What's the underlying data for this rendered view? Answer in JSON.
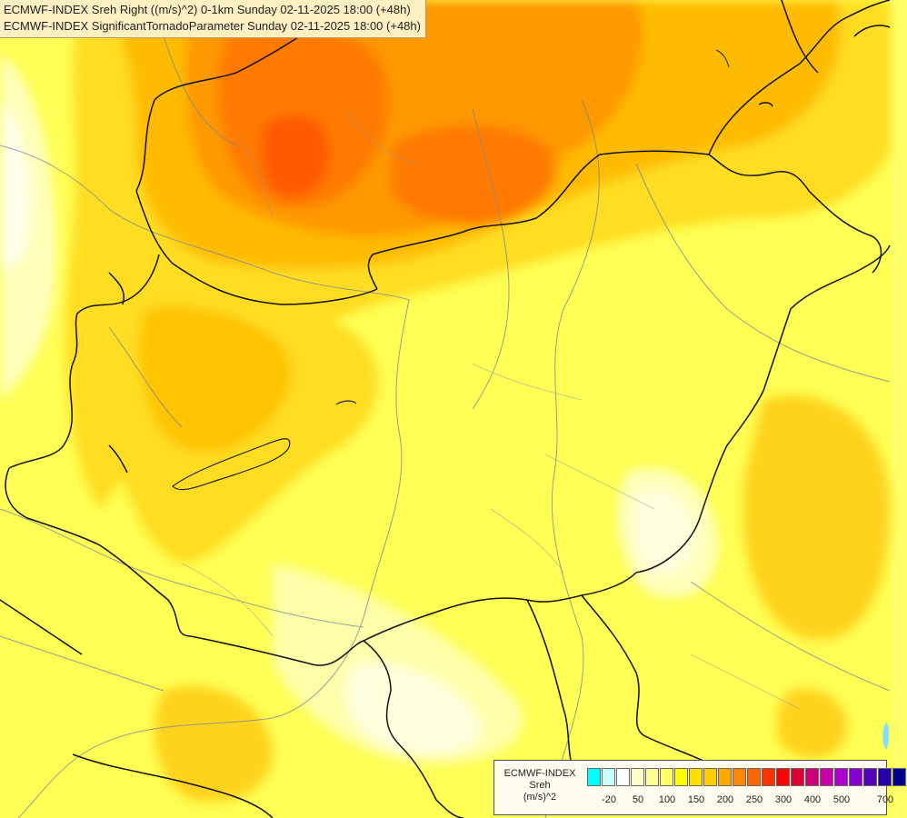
{
  "title": {
    "line1": "ECMWF-INDEX Sreh Right ((m/s)^2) 0-1km Sunday 02-11-2025 18:00 (+48h)",
    "line2": "ECMWF-INDEX SignificantTornadoParameter Sunday 02-11-2025 18:00 (+48h)"
  },
  "legend": {
    "line1": "ECMWF-INDEX",
    "line2": "Sreh",
    "line3": "(m/s)^2",
    "colors": [
      "#00ffff",
      "#ccffff",
      "#ffffff",
      "#ffffcc",
      "#ffff99",
      "#ffff66",
      "#ffff00",
      "#ffdd00",
      "#ffcc00",
      "#ffaa00",
      "#ff8800",
      "#ff6600",
      "#ff3300",
      "#ff0000",
      "#dd0033",
      "#cc0077",
      "#cc00aa",
      "#aa00cc",
      "#8800cc",
      "#5500bb",
      "#2200aa",
      "#000088"
    ],
    "tick_labels": [
      "-20",
      "50",
      "100",
      "150",
      "200",
      "250",
      "300",
      "400",
      "500",
      "700"
    ]
  },
  "field_colors": {
    "pale": "#ffffcc",
    "light": "#ffff99",
    "yellow": "#ffff33",
    "gold": "#ffdd00",
    "amber": "#ffcc00",
    "orange": "#ffaa00",
    "dark_orange": "#ff8800",
    "red_orange": "#ff6600",
    "red": "#ff3300"
  }
}
